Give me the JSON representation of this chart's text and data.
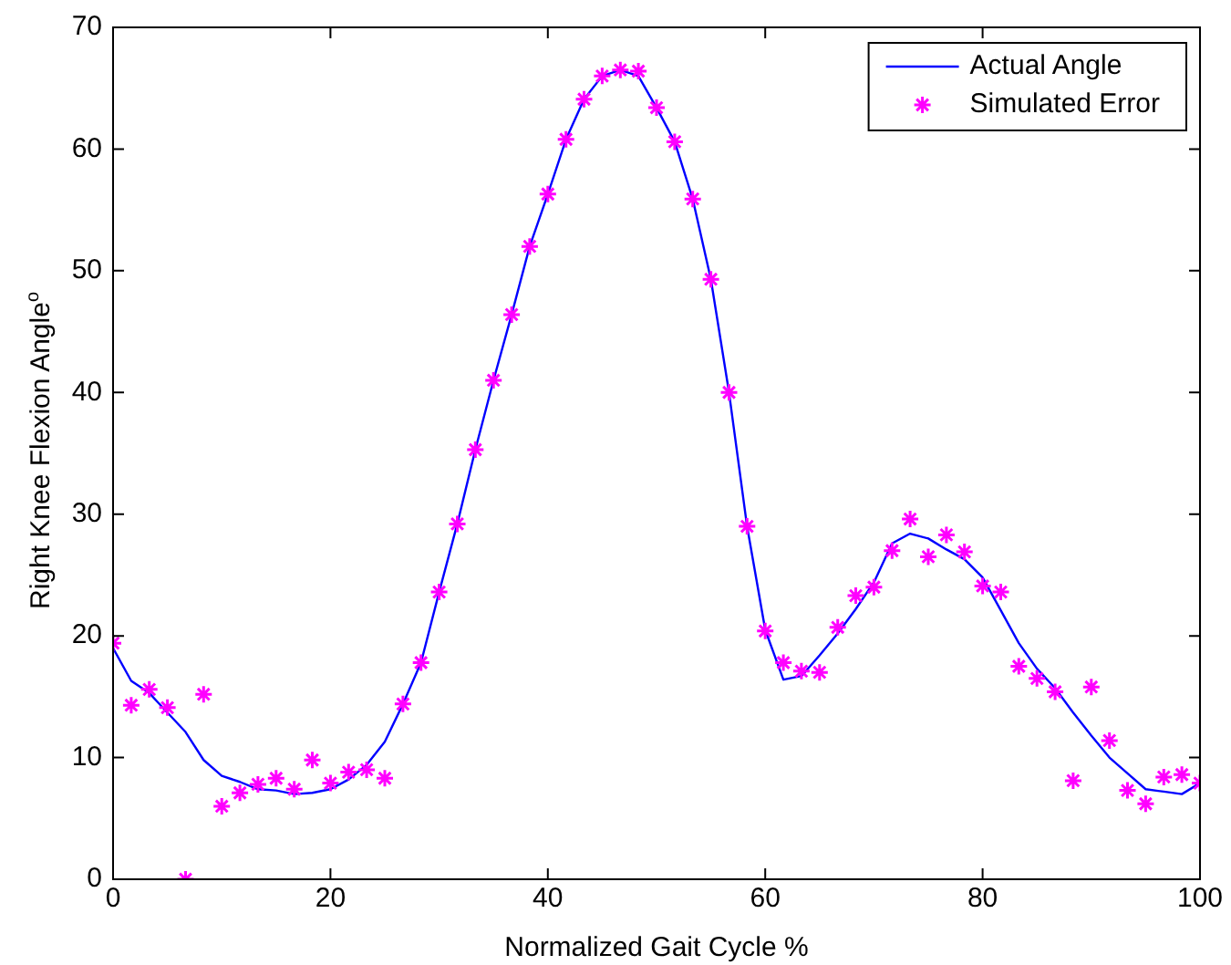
{
  "chart_data": {
    "type": "line",
    "xlabel": "Normalized Gait Cycle %",
    "ylabel": "Right Knee Flexion Angle$^{o}$",
    "x": [
      0,
      1.67,
      3.33,
      5,
      6.67,
      8.33,
      10,
      11.67,
      13.33,
      15,
      16.67,
      18.33,
      20,
      21.67,
      23.33,
      25,
      26.67,
      28.33,
      30,
      31.67,
      33.33,
      35,
      36.67,
      38.33,
      40,
      41.67,
      43.33,
      45,
      46.67,
      48.33,
      50,
      51.67,
      53.33,
      55,
      56.67,
      58.33,
      60,
      61.67,
      63.33,
      65,
      66.67,
      68.33,
      70,
      71.67,
      73.33,
      75,
      76.67,
      78.33,
      80,
      81.67,
      83.33,
      85,
      86.67,
      88.33,
      90,
      91.67,
      93.33,
      95,
      96.67,
      98.33,
      100
    ],
    "series": [
      {
        "name": "Actual Angle",
        "type": "line",
        "color": "#0000ff",
        "marker": "none",
        "values": [
          19.0,
          16.3,
          15.3,
          13.7,
          12.1,
          9.8,
          8.5,
          8.0,
          7.4,
          7.3,
          7.0,
          7.1,
          7.4,
          8.2,
          9.4,
          11.3,
          14.4,
          17.8,
          23.6,
          29.2,
          35.3,
          41.0,
          46.4,
          52.0,
          56.3,
          60.8,
          64.1,
          66.0,
          66.5,
          66.0,
          63.4,
          60.6,
          55.9,
          49.3,
          40.0,
          29.0,
          20.5,
          16.4,
          16.7,
          18.4,
          20.2,
          22.2,
          24.4,
          27.6,
          28.4,
          28.0,
          27.1,
          26.3,
          24.8,
          22.1,
          19.4,
          17.3,
          15.7,
          13.7,
          11.8,
          10.0,
          8.7,
          7.4,
          7.2,
          7.0,
          7.9
        ]
      },
      {
        "name": "Simulated Error",
        "type": "scatter",
        "color": "#ff00ff",
        "marker": "cross",
        "values": [
          19.4,
          14.3,
          15.6,
          14.1,
          0,
          15.2,
          6.0,
          7.1,
          7.8,
          8.3,
          7.4,
          9.8,
          7.9,
          8.8,
          9.0,
          8.3,
          14.4,
          17.8,
          23.6,
          29.2,
          35.3,
          41.0,
          46.4,
          52.0,
          56.3,
          60.8,
          64.1,
          66.0,
          66.5,
          66.4,
          63.4,
          60.6,
          55.9,
          49.3,
          40.0,
          29.0,
          20.4,
          17.8,
          17.1,
          17.0,
          20.7,
          23.3,
          24.0,
          27.0,
          29.6,
          26.5,
          28.3,
          26.9,
          24.1,
          23.6,
          17.5,
          16.5,
          15.4,
          8.1,
          15.8,
          11.4,
          7.3,
          6.2,
          8.4,
          8.6,
          7.9
        ]
      }
    ],
    "xlim": [
      0,
      100
    ],
    "xticks": [
      0,
      20,
      40,
      60,
      80,
      100
    ],
    "ylim": [
      0,
      70
    ],
    "yticks": [
      0,
      10,
      20,
      30,
      40,
      50,
      60,
      70
    ],
    "grid": false,
    "legend": "top right"
  }
}
